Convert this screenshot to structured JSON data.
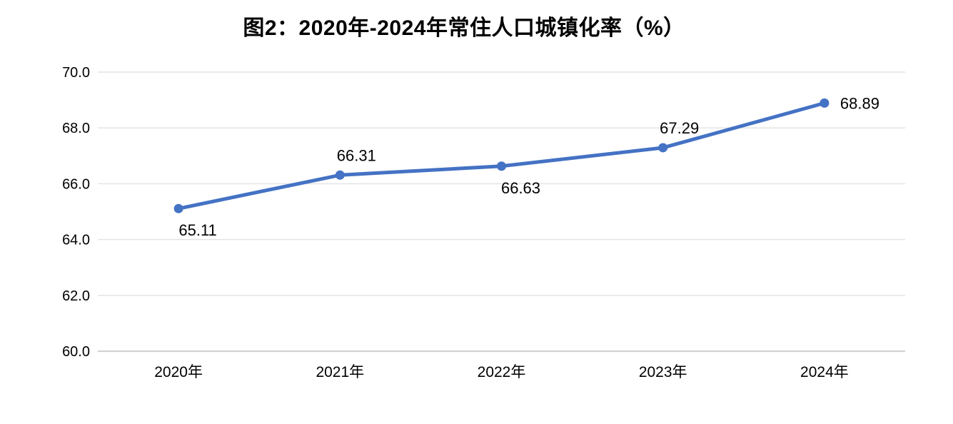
{
  "page": {
    "background": "#FFFFFF"
  },
  "chart_data": {
    "type": "line",
    "title": "图2：2020年-2024年常住人口城镇化率（%）",
    "categories": [
      "2020年",
      "2021年",
      "2022年",
      "2023年",
      "2024年"
    ],
    "values": [
      65.11,
      66.31,
      66.63,
      67.29,
      68.89
    ],
    "data_labels": [
      "65.11",
      "66.31",
      "66.63",
      "67.29",
      "68.89"
    ],
    "data_label_positions": [
      "below",
      "above",
      "below",
      "above",
      "right"
    ],
    "xlabel": "",
    "ylabel": "",
    "ylim": [
      60,
      70
    ],
    "yticks": [
      70,
      68,
      66,
      64,
      62,
      60
    ],
    "ytick_labels": [
      "70.0",
      "68.0",
      "66.0",
      "64.0",
      "62.0",
      "60.0"
    ],
    "grid": true,
    "legend": "none",
    "colors": {
      "line": "#4472C4",
      "marker": "#4472C4",
      "gridline": "#E2E2E2",
      "axis_line": "#D2D2D2",
      "text": "#000000"
    }
  }
}
